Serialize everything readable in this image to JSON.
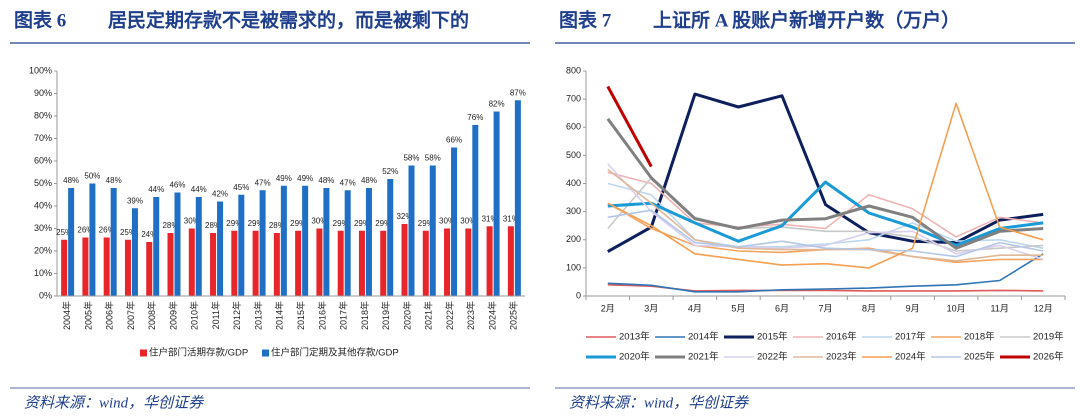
{
  "chart_data": [
    {
      "type": "bar",
      "figure": "图表 6",
      "title": "居民定期存款不是被需求的，而是被剩下的",
      "source": "资料来源：wind，华创证券",
      "categories": [
        "2004年",
        "2005年",
        "2006年",
        "2007年",
        "2008年",
        "2009年",
        "2010年",
        "2011年",
        "2012年",
        "2013年",
        "2014年",
        "2015年",
        "2016年",
        "2017年",
        "2018年",
        "2019年",
        "2020年",
        "2021年",
        "2022年",
        "2023年",
        "2024年",
        "2025年"
      ],
      "series": [
        {
          "name": "住户部门活期存款/GDP",
          "color": "#e8262a",
          "values": [
            25,
            26,
            26,
            25,
            24,
            28,
            30,
            28,
            29,
            29,
            28,
            29,
            30,
            29,
            29,
            29,
            32,
            29,
            30,
            30,
            31,
            31
          ],
          "value_labels": [
            "25%",
            "26%",
            "26%",
            "25%",
            "24%",
            "28%",
            "30%",
            "28%",
            "29%",
            "29%",
            "28%",
            "29%",
            "30%",
            "29%",
            "29%",
            "29%",
            "32%",
            "29%",
            "30%",
            "30%",
            "31%",
            "31%"
          ]
        },
        {
          "name": "住户部门定期及其他存款/GDP",
          "color": "#1f6fc5",
          "values": [
            48,
            50,
            48,
            39,
            44,
            46,
            44,
            42,
            45,
            47,
            49,
            49,
            48,
            47,
            48,
            52,
            58,
            58,
            66,
            76,
            82,
            87
          ],
          "value_labels": [
            "48%",
            "50%",
            "48%",
            "39%",
            "44%",
            "46%",
            "44%",
            "42%",
            "45%",
            "47%",
            "49%",
            "49%",
            "48%",
            "47%",
            "48%",
            "52%",
            "58%",
            "58%",
            "66%",
            "76%",
            "82%",
            "87%"
          ]
        }
      ],
      "ylim": [
        0,
        100
      ],
      "yticks": [
        {
          "value": 0,
          "label": "0%"
        },
        {
          "value": 10,
          "label": "10%"
        },
        {
          "value": 20,
          "label": "20%"
        },
        {
          "value": 30,
          "label": "30%"
        },
        {
          "value": 40,
          "label": "40%"
        },
        {
          "value": 50,
          "label": "50%"
        },
        {
          "value": 60,
          "label": "60%"
        },
        {
          "value": 70,
          "label": "70%"
        },
        {
          "value": 80,
          "label": "80%"
        },
        {
          "value": 90,
          "label": "90%"
        },
        {
          "value": 100,
          "label": "100%"
        }
      ],
      "grid": false,
      "legend": "bottom"
    },
    {
      "type": "line",
      "figure": "图表 7",
      "title": "上证所 A 股账户新增开户数（万户）",
      "source": "资料来源：wind，华创证券",
      "categories": [
        "2月",
        "3月",
        "4月",
        "5月",
        "6月",
        "7月",
        "8月",
        "9月",
        "10月",
        "11月",
        "12月"
      ],
      "series": [
        {
          "name": "2013年",
          "color": "#e05a5a",
          "values": [
            40,
            35,
            18,
            20,
            20,
            20,
            18,
            18,
            18,
            20,
            18
          ]
        },
        {
          "name": "2014年",
          "color": "#2e75b6",
          "values": [
            45,
            38,
            15,
            15,
            22,
            25,
            28,
            35,
            40,
            55,
            150
          ]
        },
        {
          "name": "2015年",
          "color": "#0d1f5c",
          "values": [
            158,
            245,
            718,
            672,
            712,
            325,
            225,
            195,
            190,
            270,
            290
          ]
        },
        {
          "name": "2016年",
          "color": "#f0b3b3",
          "values": [
            440,
            400,
            260,
            245,
            255,
            240,
            360,
            310,
            210,
            280,
            260
          ]
        },
        {
          "name": "2017年",
          "color": "#bdd7ee",
          "values": [
            400,
            360,
            200,
            175,
            175,
            185,
            200,
            260,
            195,
            200,
            170
          ]
        },
        {
          "name": "2018年",
          "color": "#f4a460",
          "values": [
            330,
            240,
            180,
            160,
            155,
            165,
            170,
            140,
            120,
            130,
            130
          ]
        },
        {
          "name": "2019年",
          "color": "#c8c8c8",
          "values": [
            240,
            420,
            280,
            240,
            245,
            230,
            230,
            210,
            160,
            170,
            180
          ]
        },
        {
          "name": "2020年",
          "color": "#1a9ad6",
          "values": [
            320,
            330,
            260,
            195,
            250,
            405,
            295,
            245,
            180,
            240,
            260
          ]
        },
        {
          "name": "2021年",
          "color": "#808080",
          "values": [
            630,
            420,
            275,
            240,
            270,
            275,
            320,
            280,
            170,
            230,
            240
          ]
        },
        {
          "name": "2022年",
          "color": "#d9d0ee",
          "values": [
            470,
            300,
            180,
            175,
            170,
            180,
            225,
            230,
            150,
            180,
            130
          ]
        },
        {
          "name": "2023年",
          "color": "#e0b898",
          "values": [
            450,
            330,
            200,
            170,
            165,
            165,
            165,
            140,
            125,
            145,
            145
          ]
        },
        {
          "name": "2024年",
          "color": "#f5a050",
          "values": [
            330,
            250,
            150,
            130,
            110,
            115,
            100,
            170,
            685,
            245,
            200
          ]
        },
        {
          "name": "2025年",
          "color": "#b4c7e7",
          "values": [
            280,
            305,
            190,
            175,
            195,
            170,
            165,
            160,
            140,
            190,
            160
          ]
        },
        {
          "name": "2026年",
          "color": "#c00000",
          "values": [
            745,
            460,
            null,
            null,
            null,
            null,
            null,
            null,
            null,
            null,
            null
          ]
        }
      ],
      "ylim": [
        0,
        800
      ],
      "yticks": [
        0,
        100,
        200,
        300,
        400,
        500,
        600,
        700,
        800
      ],
      "grid": false,
      "legend": "bottom"
    }
  ]
}
